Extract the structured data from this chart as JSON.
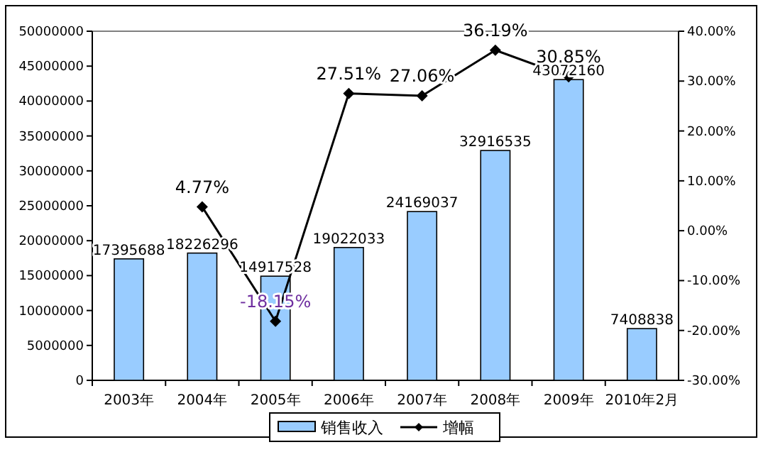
{
  "chart_data": {
    "type": "bar",
    "categories": [
      "2003年",
      "2004年",
      "2005年",
      "2006年",
      "2007年",
      "2008年",
      "2009年",
      "2010年2月"
    ],
    "series": [
      {
        "name": "销售收入",
        "color": "#99ccff",
        "values": [
          17395688,
          18226296,
          14917528,
          19022033,
          24169037,
          32916535,
          43072160,
          7408838
        ],
        "value_labels": [
          "17395688",
          "18226296",
          "14917528",
          "19022033",
          "24169037",
          "32916535",
          "43072160",
          "7408838"
        ]
      },
      {
        "name": "增幅",
        "type": "line",
        "axis": "y2",
        "color": "#000000",
        "marker": "diamond",
        "values": [
          null,
          4.77,
          -18.15,
          27.51,
          27.06,
          36.19,
          30.85,
          null
        ],
        "value_labels": [
          null,
          "4.77%",
          "-18.15%",
          "27.51%",
          "27.06%",
          "36.19%",
          "30.85%",
          null
        ]
      }
    ],
    "ylim": [
      0,
      50000000
    ],
    "yticks": [
      0,
      5000000,
      10000000,
      15000000,
      20000000,
      25000000,
      30000000,
      35000000,
      40000000,
      45000000,
      50000000
    ],
    "y2lim": [
      -30,
      40
    ],
    "y2ticks": [
      {
        "value": -30,
        "label": "-30.00%"
      },
      {
        "value": -20,
        "label": "-20.00%"
      },
      {
        "value": -10,
        "label": "-10.00%"
      },
      {
        "value": 0,
        "label": "0.00%"
      },
      {
        "value": 10,
        "label": "10.00%"
      },
      {
        "value": 20,
        "label": "20.00%"
      },
      {
        "value": 30,
        "label": "30.00%"
      },
      {
        "value": 40,
        "label": "40.00%"
      }
    ],
    "legend": "bottom",
    "grid": false
  }
}
